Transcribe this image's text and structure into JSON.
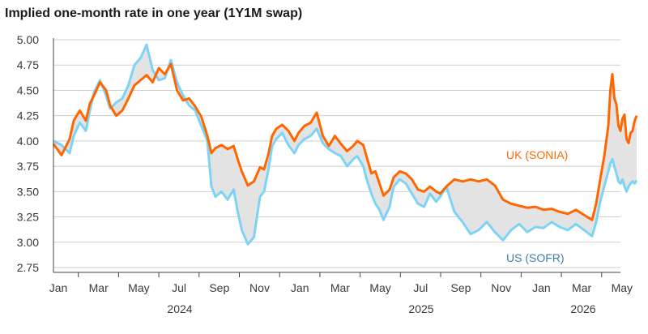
{
  "chart_data": {
    "type": "line",
    "title": "Implied one-month rate in one year (1Y1M swap)",
    "ylim": [
      2.75,
      5.0
    ],
    "y_ticks": [
      "5.00",
      "4.75",
      "4.50",
      "4.25",
      "4.00",
      "3.75",
      "3.50",
      "3.25",
      "3.00",
      "2.75"
    ],
    "x_ticks": [
      "Jan",
      "Mar",
      "May",
      "Jul",
      "Sep",
      "Nov",
      "Jan",
      "Mar",
      "May",
      "Jul",
      "Sep",
      "Nov",
      "Jan",
      "Mar",
      "May"
    ],
    "year_labels": [
      "2024",
      "2025",
      "2026"
    ],
    "x_range": [
      0,
      28
    ],
    "grid": true,
    "fill_between": true,
    "fill_color": "#e3e3e3",
    "series": [
      {
        "name": "UK (SONIA)",
        "color": "#ff6600",
        "points": [
          [
            0,
            3.97
          ],
          [
            0.4,
            3.86
          ],
          [
            0.8,
            4.02
          ],
          [
            1.0,
            4.2
          ],
          [
            1.3,
            4.3
          ],
          [
            1.6,
            4.2
          ],
          [
            1.8,
            4.37
          ],
          [
            2.0,
            4.45
          ],
          [
            2.3,
            4.58
          ],
          [
            2.6,
            4.5
          ],
          [
            2.8,
            4.35
          ],
          [
            3.1,
            4.25
          ],
          [
            3.4,
            4.3
          ],
          [
            3.7,
            4.42
          ],
          [
            4.0,
            4.55
          ],
          [
            4.3,
            4.6
          ],
          [
            4.6,
            4.65
          ],
          [
            4.9,
            4.58
          ],
          [
            5.2,
            4.72
          ],
          [
            5.5,
            4.66
          ],
          [
            5.8,
            4.76
          ],
          [
            6.1,
            4.5
          ],
          [
            6.4,
            4.4
          ],
          [
            6.7,
            4.42
          ],
          [
            7.0,
            4.34
          ],
          [
            7.3,
            4.24
          ],
          [
            7.6,
            4.05
          ],
          [
            7.8,
            3.88
          ],
          [
            8.0,
            3.93
          ],
          [
            8.3,
            3.96
          ],
          [
            8.6,
            3.92
          ],
          [
            8.9,
            3.95
          ],
          [
            9.1,
            3.82
          ],
          [
            9.3,
            3.7
          ],
          [
            9.6,
            3.56
          ],
          [
            9.9,
            3.6
          ],
          [
            10.2,
            3.74
          ],
          [
            10.4,
            3.72
          ],
          [
            10.6,
            3.86
          ],
          [
            10.8,
            4.05
          ],
          [
            11.0,
            4.12
          ],
          [
            11.3,
            4.16
          ],
          [
            11.6,
            4.1
          ],
          [
            11.9,
            4.0
          ],
          [
            12.1,
            4.08
          ],
          [
            12.4,
            4.15
          ],
          [
            12.7,
            4.18
          ],
          [
            13.0,
            4.28
          ],
          [
            13.3,
            4.05
          ],
          [
            13.6,
            3.95
          ],
          [
            13.9,
            4.05
          ],
          [
            14.2,
            3.97
          ],
          [
            14.5,
            3.9
          ],
          [
            14.8,
            3.95
          ],
          [
            15.0,
            4.0
          ],
          [
            15.3,
            3.96
          ],
          [
            15.5,
            3.82
          ],
          [
            15.7,
            3.68
          ],
          [
            15.9,
            3.7
          ],
          [
            16.1,
            3.58
          ],
          [
            16.3,
            3.46
          ],
          [
            16.6,
            3.52
          ],
          [
            16.8,
            3.64
          ],
          [
            17.1,
            3.7
          ],
          [
            17.4,
            3.68
          ],
          [
            17.7,
            3.62
          ],
          [
            18.0,
            3.52
          ],
          [
            18.3,
            3.5
          ],
          [
            18.6,
            3.55
          ],
          [
            18.9,
            3.5
          ],
          [
            19.1,
            3.48
          ],
          [
            19.4,
            3.55
          ],
          [
            19.8,
            3.62
          ],
          [
            20.2,
            3.6
          ],
          [
            20.6,
            3.62
          ],
          [
            21.0,
            3.6
          ],
          [
            21.4,
            3.62
          ],
          [
            21.8,
            3.56
          ],
          [
            22.2,
            3.42
          ],
          [
            22.6,
            3.38
          ],
          [
            23.0,
            3.36
          ],
          [
            23.4,
            3.34
          ],
          [
            23.8,
            3.35
          ],
          [
            24.2,
            3.32
          ],
          [
            24.6,
            3.33
          ],
          [
            25.0,
            3.3
          ],
          [
            25.4,
            3.28
          ],
          [
            25.8,
            3.32
          ],
          [
            26.2,
            3.27
          ],
          [
            26.6,
            3.22
          ],
          [
            26.8,
            3.38
          ],
          [
            27.0,
            3.62
          ],
          [
            27.2,
            3.85
          ],
          [
            27.4,
            4.15
          ],
          [
            27.5,
            4.5
          ],
          [
            27.6,
            4.66
          ],
          [
            27.7,
            4.42
          ],
          [
            27.8,
            4.36
          ],
          [
            27.9,
            4.15
          ],
          [
            28.0,
            4.1
          ],
          [
            28.1,
            4.22
          ],
          [
            28.2,
            4.26
          ],
          [
            28.3,
            4.02
          ],
          [
            28.4,
            3.98
          ],
          [
            28.5,
            4.08
          ],
          [
            28.6,
            4.1
          ],
          [
            28.7,
            4.2
          ],
          [
            28.8,
            4.25
          ]
        ]
      },
      {
        "name": "US (SOFR)",
        "color": "#7dd3f5",
        "points": [
          [
            0,
            4.0
          ],
          [
            0.4,
            3.96
          ],
          [
            0.8,
            3.88
          ],
          [
            1.0,
            4.05
          ],
          [
            1.3,
            4.18
          ],
          [
            1.6,
            4.1
          ],
          [
            1.8,
            4.3
          ],
          [
            2.0,
            4.48
          ],
          [
            2.3,
            4.6
          ],
          [
            2.6,
            4.45
          ],
          [
            2.8,
            4.32
          ],
          [
            3.1,
            4.38
          ],
          [
            3.4,
            4.42
          ],
          [
            3.7,
            4.55
          ],
          [
            4.0,
            4.75
          ],
          [
            4.3,
            4.82
          ],
          [
            4.6,
            4.95
          ],
          [
            4.9,
            4.7
          ],
          [
            5.2,
            4.6
          ],
          [
            5.5,
            4.62
          ],
          [
            5.8,
            4.8
          ],
          [
            6.1,
            4.58
          ],
          [
            6.4,
            4.45
          ],
          [
            6.7,
            4.35
          ],
          [
            7.0,
            4.3
          ],
          [
            7.3,
            4.15
          ],
          [
            7.6,
            4.0
          ],
          [
            7.8,
            3.55
          ],
          [
            8.0,
            3.45
          ],
          [
            8.3,
            3.5
          ],
          [
            8.6,
            3.42
          ],
          [
            8.9,
            3.52
          ],
          [
            9.1,
            3.3
          ],
          [
            9.3,
            3.12
          ],
          [
            9.6,
            2.98
          ],
          [
            9.9,
            3.05
          ],
          [
            10.2,
            3.45
          ],
          [
            10.4,
            3.5
          ],
          [
            10.6,
            3.7
          ],
          [
            10.8,
            3.95
          ],
          [
            11.0,
            4.02
          ],
          [
            11.3,
            4.08
          ],
          [
            11.6,
            3.96
          ],
          [
            11.9,
            3.88
          ],
          [
            12.1,
            3.96
          ],
          [
            12.4,
            4.02
          ],
          [
            12.7,
            4.05
          ],
          [
            13.0,
            4.12
          ],
          [
            13.3,
            3.98
          ],
          [
            13.6,
            3.92
          ],
          [
            13.9,
            3.88
          ],
          [
            14.2,
            3.85
          ],
          [
            14.5,
            3.75
          ],
          [
            14.8,
            3.82
          ],
          [
            15.0,
            3.85
          ],
          [
            15.3,
            3.75
          ],
          [
            15.5,
            3.6
          ],
          [
            15.7,
            3.48
          ],
          [
            15.9,
            3.38
          ],
          [
            16.1,
            3.32
          ],
          [
            16.3,
            3.22
          ],
          [
            16.6,
            3.35
          ],
          [
            16.8,
            3.55
          ],
          [
            17.1,
            3.62
          ],
          [
            17.4,
            3.58
          ],
          [
            17.7,
            3.48
          ],
          [
            18.0,
            3.38
          ],
          [
            18.3,
            3.35
          ],
          [
            18.6,
            3.48
          ],
          [
            18.9,
            3.4
          ],
          [
            19.1,
            3.45
          ],
          [
            19.4,
            3.55
          ],
          [
            19.8,
            3.3
          ],
          [
            20.2,
            3.2
          ],
          [
            20.6,
            3.08
          ],
          [
            21.0,
            3.12
          ],
          [
            21.4,
            3.2
          ],
          [
            21.8,
            3.1
          ],
          [
            22.2,
            3.02
          ],
          [
            22.6,
            3.12
          ],
          [
            23.0,
            3.18
          ],
          [
            23.4,
            3.1
          ],
          [
            23.8,
            3.15
          ],
          [
            24.2,
            3.14
          ],
          [
            24.6,
            3.2
          ],
          [
            25.0,
            3.15
          ],
          [
            25.4,
            3.12
          ],
          [
            25.8,
            3.18
          ],
          [
            26.2,
            3.12
          ],
          [
            26.6,
            3.06
          ],
          [
            26.8,
            3.2
          ],
          [
            27.0,
            3.4
          ],
          [
            27.2,
            3.55
          ],
          [
            27.4,
            3.7
          ],
          [
            27.5,
            3.78
          ],
          [
            27.6,
            3.82
          ],
          [
            27.7,
            3.75
          ],
          [
            27.8,
            3.68
          ],
          [
            27.9,
            3.6
          ],
          [
            28.0,
            3.58
          ],
          [
            28.1,
            3.62
          ],
          [
            28.2,
            3.55
          ],
          [
            28.3,
            3.5
          ],
          [
            28.4,
            3.55
          ],
          [
            28.5,
            3.58
          ],
          [
            28.6,
            3.6
          ],
          [
            28.7,
            3.58
          ],
          [
            28.8,
            3.61
          ]
        ]
      }
    ]
  }
}
